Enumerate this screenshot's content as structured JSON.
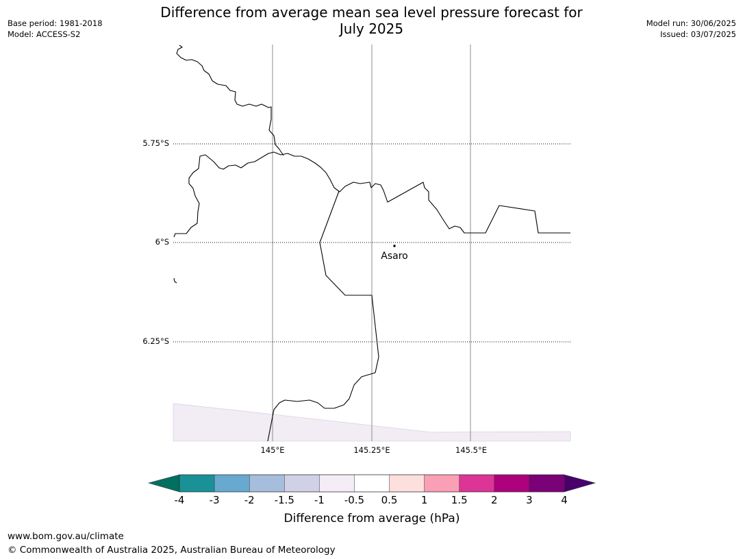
{
  "header": {
    "base_period": "Base period: 1981-2018",
    "model": "Model: ACCESS-S2",
    "title_line1": "Difference from average mean sea level pressure forecast for",
    "title_line2": "July 2025",
    "model_run": "Model run: 30/06/2025",
    "issued": "Issued: 03/07/2025"
  },
  "map": {
    "lat_labels": [
      "5.75°S",
      "6°S",
      "6.25°S"
    ],
    "lon_labels": [
      "145°E",
      "145.25°E",
      "145.5°E"
    ],
    "place": {
      "name": "Asaro",
      "icon": "dot-marker-icon"
    },
    "fill_color": "#f2ecf5",
    "border_color": "#000000"
  },
  "colorbar": {
    "label": "Difference from average (hPa)",
    "ticks": [
      "-4",
      "-3",
      "-2",
      "-1.5",
      "-1",
      "-0.5",
      "0.5",
      "1",
      "1.5",
      "2",
      "3",
      "4"
    ],
    "colors": [
      "#1a9097",
      "#67a9cf",
      "#a6bddb",
      "#d0d1e6",
      "#f4ecf7",
      "#ffffff",
      "#fde0dd",
      "#fa9fb5",
      "#dd3497",
      "#ae017e",
      "#7a0177"
    ],
    "under_color": "#017060",
    "over_color": "#49006a"
  },
  "footer": {
    "url": "www.bom.gov.au/climate",
    "copyright": "© Commonwealth of Australia 2025, Australian Bureau of Meteorology"
  }
}
